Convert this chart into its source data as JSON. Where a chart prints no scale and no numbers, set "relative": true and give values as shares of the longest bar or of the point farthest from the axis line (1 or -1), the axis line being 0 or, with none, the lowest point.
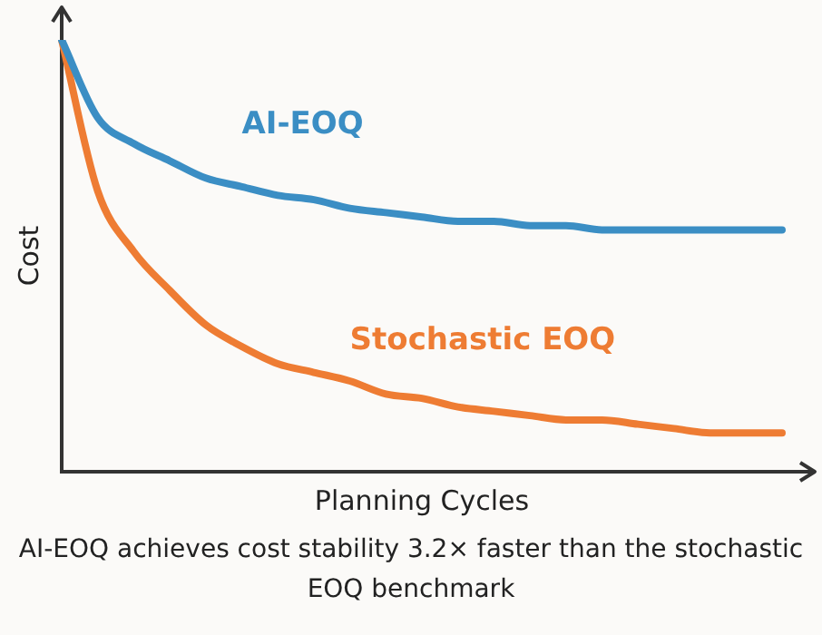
{
  "chart_data": {
    "type": "line",
    "relative": true,
    "xlabel": "Planning Cycles",
    "ylabel": "Cost",
    "categories": [
      null,
      null,
      null,
      null,
      null,
      null,
      null,
      null,
      null,
      null,
      null,
      null,
      null,
      null,
      null,
      null,
      null,
      null,
      null,
      null,
      null
    ],
    "series": [
      {
        "name": "AI-EOQ",
        "color": "#3b8ec4",
        "values": [
          1,
          0.82,
          0.76,
          0.72,
          0.68,
          0.66,
          0.64,
          0.63,
          0.61,
          0.6,
          0.59,
          0.58,
          0.58,
          0.57,
          0.57,
          0.56,
          0.56,
          0.56,
          0.56,
          0.56,
          0.56
        ]
      },
      {
        "name": "Stochastic EOQ",
        "color": "#ee7c33",
        "values": [
          1,
          0.65,
          0.51,
          0.42,
          0.34,
          0.29,
          0.25,
          0.23,
          0.21,
          0.18,
          0.17,
          0.15,
          0.14,
          0.13,
          0.12,
          0.12,
          0.11,
          0.1,
          0.09,
          0.09,
          0.09
        ]
      }
    ],
    "marker": "none",
    "grid": false,
    "legend": false,
    "annotations": [
      "AI-EOQ achieves cost stability 3.2× faster than the stochastic EOQ benchmark"
    ]
  }
}
